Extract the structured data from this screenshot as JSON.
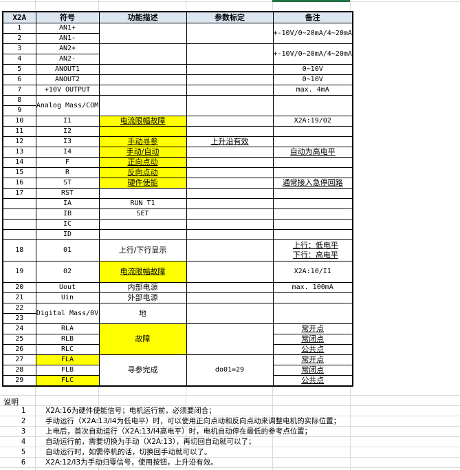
{
  "colors": {
    "header_bg": "#dce6f1",
    "highlight": "#ffff00",
    "selection": "#217346"
  },
  "header": {
    "pin": "X2A",
    "symbol": "符号",
    "function": "功能描述",
    "param": "参数标定",
    "remark": "备注"
  },
  "rows": [
    {
      "pin": "1",
      "symbol": "AN1+",
      "function": "",
      "param": "",
      "remark": "+-10V/0~20mA/4~20mA"
    },
    {
      "pin": "2",
      "symbol": "AN1-"
    },
    {
      "pin": "3",
      "symbol": "AN2+",
      "function": "",
      "param": "",
      "remark": "+-10V/0~20mA/4~20mA"
    },
    {
      "pin": "4",
      "symbol": "AN2-"
    },
    {
      "pin": "5",
      "symbol": "ANOUT1",
      "function": "",
      "param": "",
      "remark": "0~10V"
    },
    {
      "pin": "6",
      "symbol": "ANOUT2",
      "function": "",
      "param": "",
      "remark": "0~10V"
    },
    {
      "pin": "7",
      "symbol": "+10V OUTPUT",
      "function": "",
      "param": "",
      "remark": "max. 4mA"
    },
    {
      "pin": "8",
      "symbol": "Analog Mass/COM",
      "function": "",
      "param": "",
      "remark": ""
    },
    {
      "pin": "9"
    },
    {
      "pin": "10",
      "symbol": "I1",
      "function": "电流限幅故障",
      "function_highlight": true,
      "param": "",
      "remark": "X2A:19/02"
    },
    {
      "pin": "11",
      "symbol": "I2",
      "function": "",
      "function_highlight": true,
      "param": "",
      "remark": ""
    },
    {
      "pin": "12",
      "symbol": "I3",
      "function": "手动寻参",
      "function_highlight": true,
      "param": "上升沿有效",
      "remark": ""
    },
    {
      "pin": "13",
      "symbol": "I4",
      "function": "手动/自动",
      "function_highlight": true,
      "param": "",
      "remark": "自动为高电平"
    },
    {
      "pin": "14",
      "symbol": "F",
      "function": "正向点动",
      "function_highlight": true,
      "param": "",
      "remark": ""
    },
    {
      "pin": "15",
      "symbol": "R",
      "function": "反向点动",
      "function_highlight": true,
      "param": "",
      "remark": ""
    },
    {
      "pin": "16",
      "symbol": "ST",
      "function": "硬件使能",
      "function_highlight": true,
      "param": "",
      "remark": "通常接入急停回路"
    },
    {
      "pin": "17",
      "symbol": "RST",
      "function": "",
      "param": "",
      "remark": ""
    },
    {
      "pin": "",
      "symbol": "IA",
      "function": "RUN T1",
      "param": "",
      "remark": ""
    },
    {
      "pin": "",
      "symbol": "IB",
      "function": "SET",
      "param": "",
      "remark": ""
    },
    {
      "pin": "",
      "symbol": "IC",
      "function": "",
      "param": "",
      "remark": ""
    },
    {
      "pin": "",
      "symbol": "ID",
      "function": "",
      "param": "",
      "remark": ""
    },
    {
      "pin": "18",
      "symbol": "01",
      "function": "上行/下行显示",
      "param": "",
      "remark": "上行：低电平\n下行：高电平"
    },
    {
      "pin": "19",
      "symbol": "02",
      "function": "电流限幅故障",
      "function_highlight": true,
      "param": "",
      "remark": "X2A:10/I1"
    },
    {
      "pin": "20",
      "symbol": "Uout",
      "function": "内部电源",
      "param": "",
      "remark": "max.  100mA"
    },
    {
      "pin": "21",
      "symbol": "Uin",
      "function": "外部电源",
      "param": "",
      "remark": ""
    },
    {
      "pin": "22",
      "symbol": "Digital Mass/0V",
      "function": "地",
      "param": "",
      "remark": ""
    },
    {
      "pin": "23"
    },
    {
      "pin": "24",
      "symbol": "RLA",
      "function": "故障",
      "function_highlight": true,
      "param": "",
      "remark": "常开点"
    },
    {
      "pin": "25",
      "symbol": "RLB",
      "remark": "常闭点"
    },
    {
      "pin": "26",
      "symbol": "RLC",
      "remark": "公共点"
    },
    {
      "pin": "27",
      "symbol": "FLA",
      "symbol_highlight": true,
      "function": "寻参完成",
      "param": "do01=29",
      "remark": "常开点"
    },
    {
      "pin": "28",
      "symbol": "FLB",
      "remark": "常闭点"
    },
    {
      "pin": "29",
      "symbol": "FLC",
      "symbol_highlight": true,
      "remark": "公共点"
    }
  ],
  "notes": {
    "title": "说明",
    "items": [
      {
        "num": "1",
        "text": "X2A:16为硬件使能信号；电机运行前，必须要闭合；"
      },
      {
        "num": "2",
        "text": "手动运行（X2A:13/I4为低电平）时，可以使用正向点动和反向点动来调整电机的实际位置；"
      },
      {
        "num": "3",
        "text": "上电后，首次自动运行（X2A:13/I4高电平）时，电机自动停在最低的参考点位置；"
      },
      {
        "num": "4",
        "text": "自动运行前，需要切换为手动（X2A:13），再切回自动就可以了；"
      },
      {
        "num": "5",
        "text": "自动运行时，如需停机的话，切换回手动就可以了。"
      },
      {
        "num": "6",
        "text": "X2A:12/I3为手动归零信号，使用按钮，上升沿有效。"
      }
    ]
  }
}
